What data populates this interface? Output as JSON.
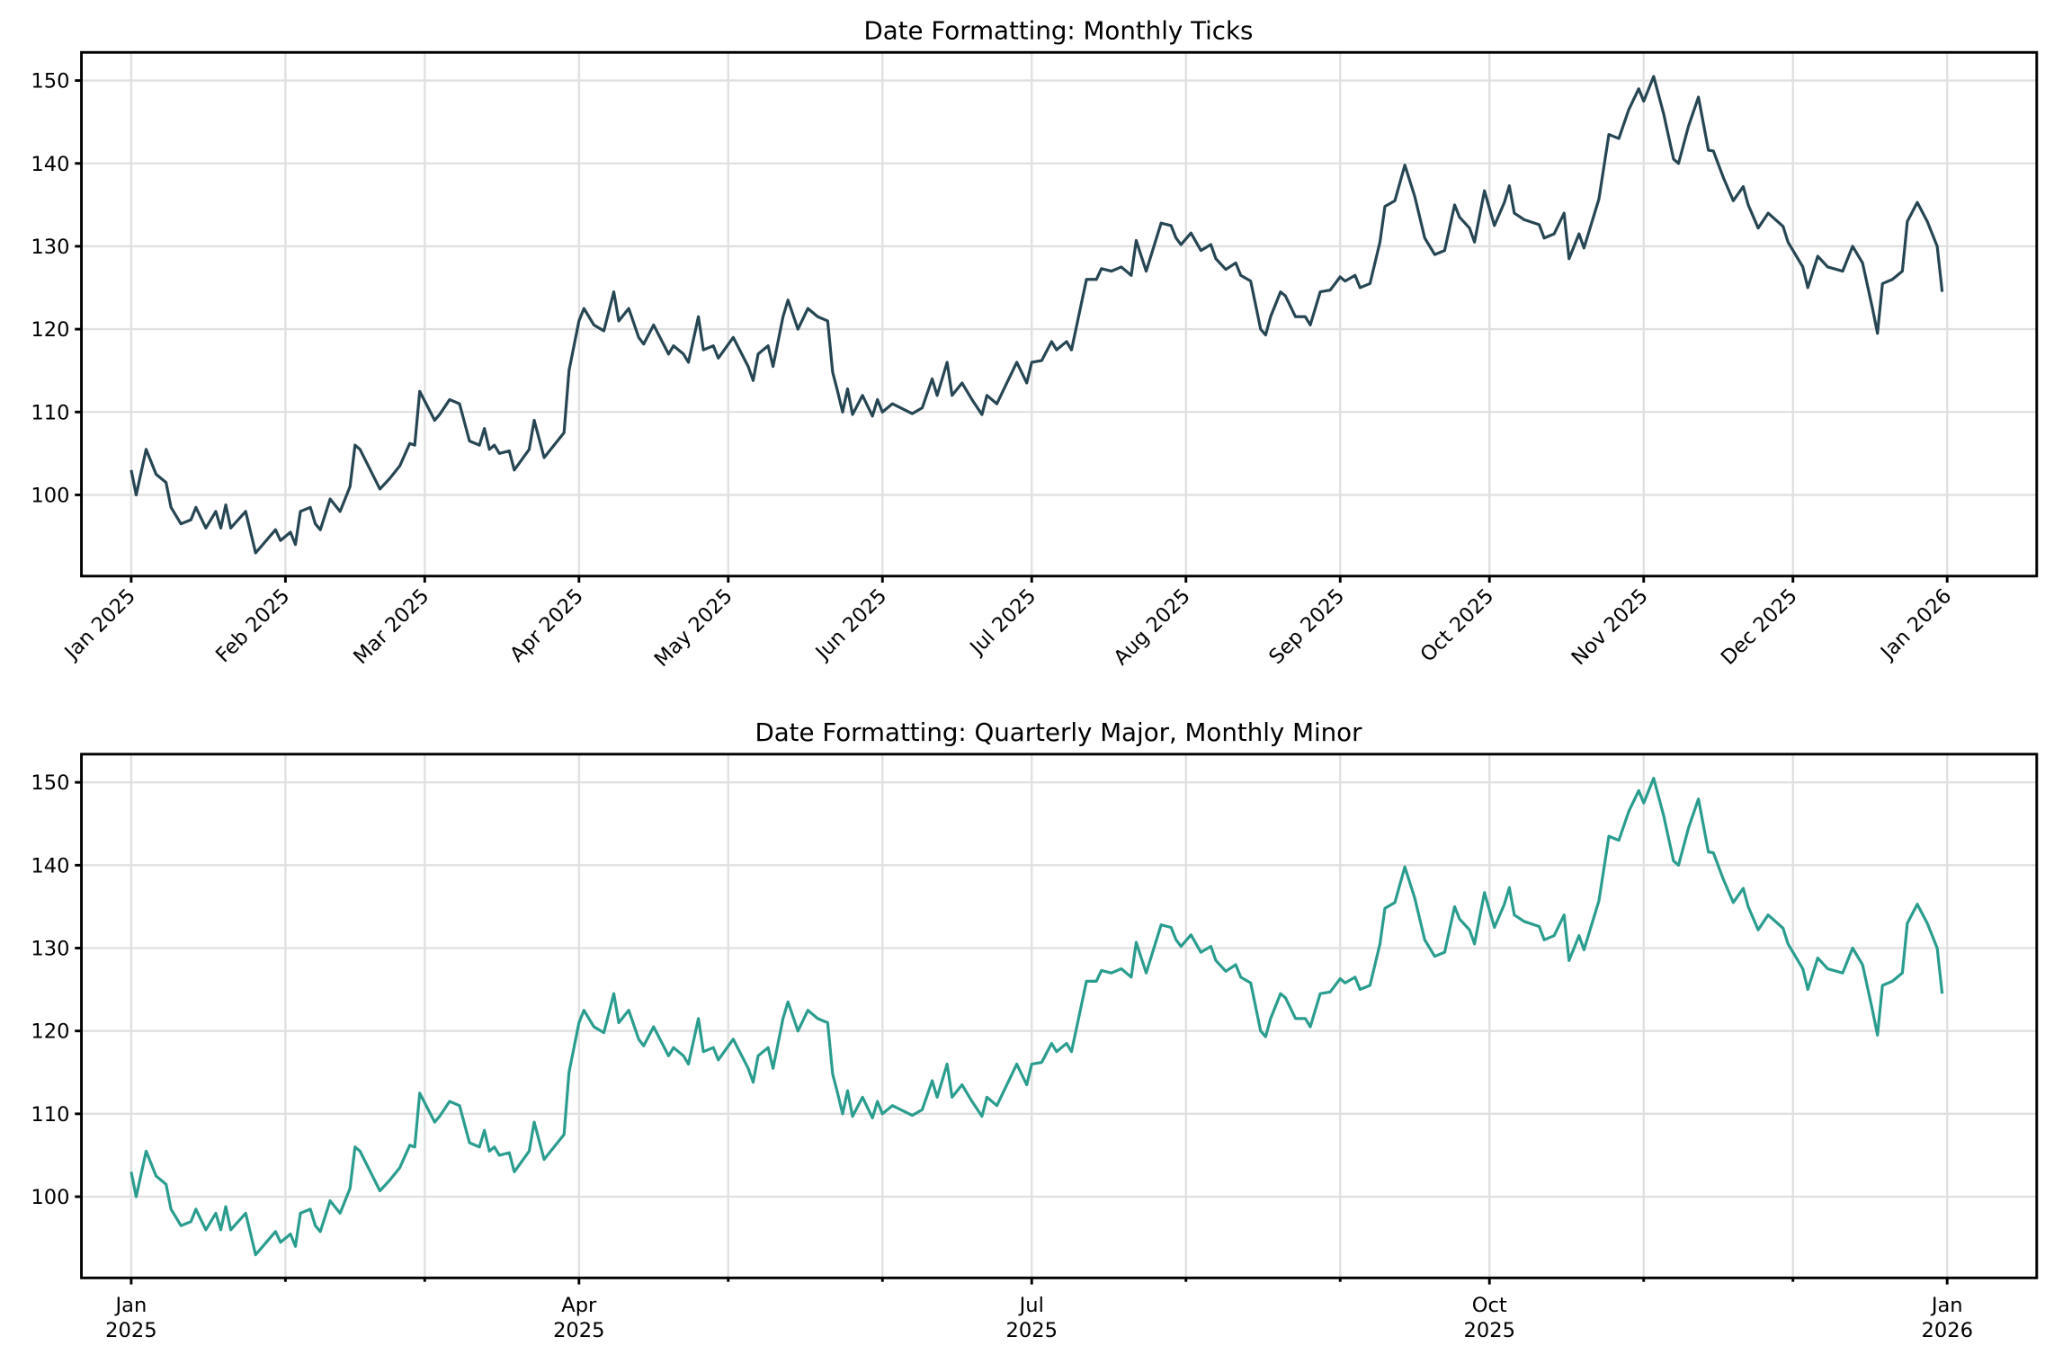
{
  "chart_data": [
    {
      "type": "line",
      "title": "Date Formatting: Monthly Ticks",
      "xlabel": "",
      "ylabel": "",
      "color": "#264653",
      "grid": true,
      "ylim": [
        90.2,
        153.4
      ],
      "xlim_days": [
        -10,
        383
      ],
      "x_start_date": "2025-01-01",
      "yticks": [
        100,
        110,
        120,
        130,
        140,
        150
      ],
      "xticks": [
        {
          "day": 0,
          "label": "Jan 2025"
        },
        {
          "day": 31,
          "label": "Feb 2025"
        },
        {
          "day": 59,
          "label": "Mar 2025"
        },
        {
          "day": 90,
          "label": "Apr 2025"
        },
        {
          "day": 120,
          "label": "May 2025"
        },
        {
          "day": 151,
          "label": "Jun 2025"
        },
        {
          "day": 181,
          "label": "Jul 2025"
        },
        {
          "day": 212,
          "label": "Aug 2025"
        },
        {
          "day": 243,
          "label": "Sep 2025"
        },
        {
          "day": 273,
          "label": "Oct 2025"
        },
        {
          "day": 304,
          "label": "Nov 2025"
        },
        {
          "day": 334,
          "label": "Dec 2025"
        },
        {
          "day": 365,
          "label": "Jan 2026"
        }
      ],
      "minor_xticks": []
    },
    {
      "type": "line",
      "title": "Date Formatting: Quarterly Major, Monthly Minor",
      "xlabel": "",
      "ylabel": "",
      "color": "#2a9d8f",
      "grid": true,
      "ylim": [
        90.2,
        153.4
      ],
      "xlim_days": [
        -10,
        383
      ],
      "x_start_date": "2025-01-01",
      "yticks": [
        100,
        110,
        120,
        130,
        140,
        150
      ],
      "xticks": [
        {
          "day": 0,
          "label": "Jan\n2025"
        },
        {
          "day": 90,
          "label": "Apr\n2025"
        },
        {
          "day": 181,
          "label": "Jul\n2025"
        },
        {
          "day": 273,
          "label": "Oct\n2025"
        },
        {
          "day": 365,
          "label": "Jan\n2026"
        }
      ],
      "minor_xticks": [
        31,
        59,
        120,
        151,
        212,
        243,
        304,
        334
      ]
    }
  ],
  "series": {
    "days": [
      0,
      1,
      3,
      5,
      7,
      8,
      10,
      12,
      13,
      15,
      17,
      18,
      19,
      20,
      23,
      25,
      29,
      30,
      32,
      33,
      34,
      36,
      37,
      38,
      40,
      42,
      44,
      45,
      46,
      50,
      52,
      54,
      56,
      57,
      58,
      61,
      62,
      64,
      66,
      68,
      70,
      71,
      72,
      73,
      74,
      76,
      77,
      80,
      81,
      83,
      87,
      88,
      90,
      91,
      93,
      95,
      97,
      98,
      100,
      102,
      103,
      105,
      108,
      109,
      111,
      112,
      114,
      115,
      117,
      118,
      121,
      124,
      125,
      126,
      128,
      129,
      131,
      132,
      134,
      136,
      138,
      140,
      141,
      142,
      143,
      144,
      145,
      147,
      149,
      150,
      151,
      153,
      157,
      159,
      161,
      162,
      164,
      165,
      167,
      169,
      171,
      172,
      174,
      176,
      178,
      180,
      181,
      183,
      185,
      186,
      188,
      189,
      192,
      194,
      195,
      197,
      199,
      201,
      202,
      204,
      207,
      209,
      210,
      211,
      213,
      215,
      217,
      218,
      220,
      222,
      223,
      225,
      227,
      228,
      229,
      231,
      232,
      234,
      236,
      237,
      239,
      241,
      243,
      244,
      246,
      247,
      249,
      251,
      252,
      254,
      256,
      258,
      260,
      262,
      264,
      266,
      267,
      269,
      270,
      272,
      274,
      276,
      277,
      278,
      280,
      283,
      284,
      286,
      288,
      289,
      291,
      292,
      295,
      297,
      299,
      301,
      303,
      304,
      306,
      308,
      310,
      311,
      313,
      315,
      317,
      318,
      320,
      322,
      324,
      325,
      327,
      329,
      332,
      333,
      336,
      337,
      339,
      341,
      344,
      346,
      348,
      350,
      351,
      352,
      354,
      356,
      357,
      359,
      361,
      363,
      364
    ],
    "values": [
      103,
      100,
      105.5,
      102.5,
      101.5,
      98.5,
      96.5,
      97,
      98.5,
      96,
      98,
      96,
      98.8,
      96,
      98,
      93,
      95.8,
      94.5,
      95.5,
      94,
      98,
      98.5,
      96.5,
      95.8,
      99.5,
      98,
      101,
      106,
      105.5,
      100.7,
      102,
      103.5,
      106.2,
      106,
      112.5,
      109,
      109.7,
      111.5,
      111,
      106.5,
      106,
      108,
      105.5,
      106,
      105,
      105.3,
      103,
      105.5,
      109,
      104.5,
      107.5,
      115,
      121,
      122.5,
      120.5,
      119.8,
      124.5,
      121,
      122.5,
      119,
      118.2,
      120.5,
      117,
      118,
      117,
      116,
      121.5,
      117.5,
      118,
      116.5,
      119,
      115.5,
      113.8,
      117,
      118,
      115.5,
      121.5,
      123.5,
      120,
      122.5,
      121.5,
      121,
      114.8,
      112.5,
      110,
      112.8,
      109.7,
      112,
      109.5,
      111.5,
      110,
      111,
      109.8,
      110.5,
      114,
      112,
      116,
      112,
      113.5,
      111.5,
      109.7,
      112,
      111,
      113.5,
      116,
      113.5,
      116,
      116.2,
      118.5,
      117.5,
      118.5,
      117.5,
      126,
      126,
      127.3,
      127,
      127.5,
      126.5,
      130.7,
      127,
      132.8,
      132.5,
      131,
      130.2,
      131.6,
      129.5,
      130.2,
      128.5,
      127.2,
      128,
      126.5,
      125.8,
      120,
      119.3,
      121.5,
      124.5,
      124,
      121.5,
      121.5,
      120.5,
      124.5,
      124.7,
      126.3,
      125.8,
      126.5,
      125,
      125.5,
      130.5,
      134.8,
      135.5,
      139.8,
      136,
      131,
      129,
      129.5,
      135,
      133.5,
      132.2,
      130.5,
      136.7,
      132.5,
      135.3,
      137.3,
      134,
      133.2,
      132.6,
      131,
      131.5,
      134,
      128.5,
      131.5,
      129.8,
      135.7,
      143.5,
      143,
      146.5,
      149,
      147.5,
      150.5,
      146,
      140.5,
      140,
      144.5,
      148,
      141.6,
      141.5,
      138.3,
      135.5,
      137.2,
      135,
      132.2,
      134,
      132.4,
      130.5,
      127.5,
      125,
      128.8,
      127.5,
      127,
      130,
      128,
      122.5,
      119.5,
      125.5,
      126,
      127,
      133,
      135.3,
      133,
      130,
      124.5
    ]
  }
}
